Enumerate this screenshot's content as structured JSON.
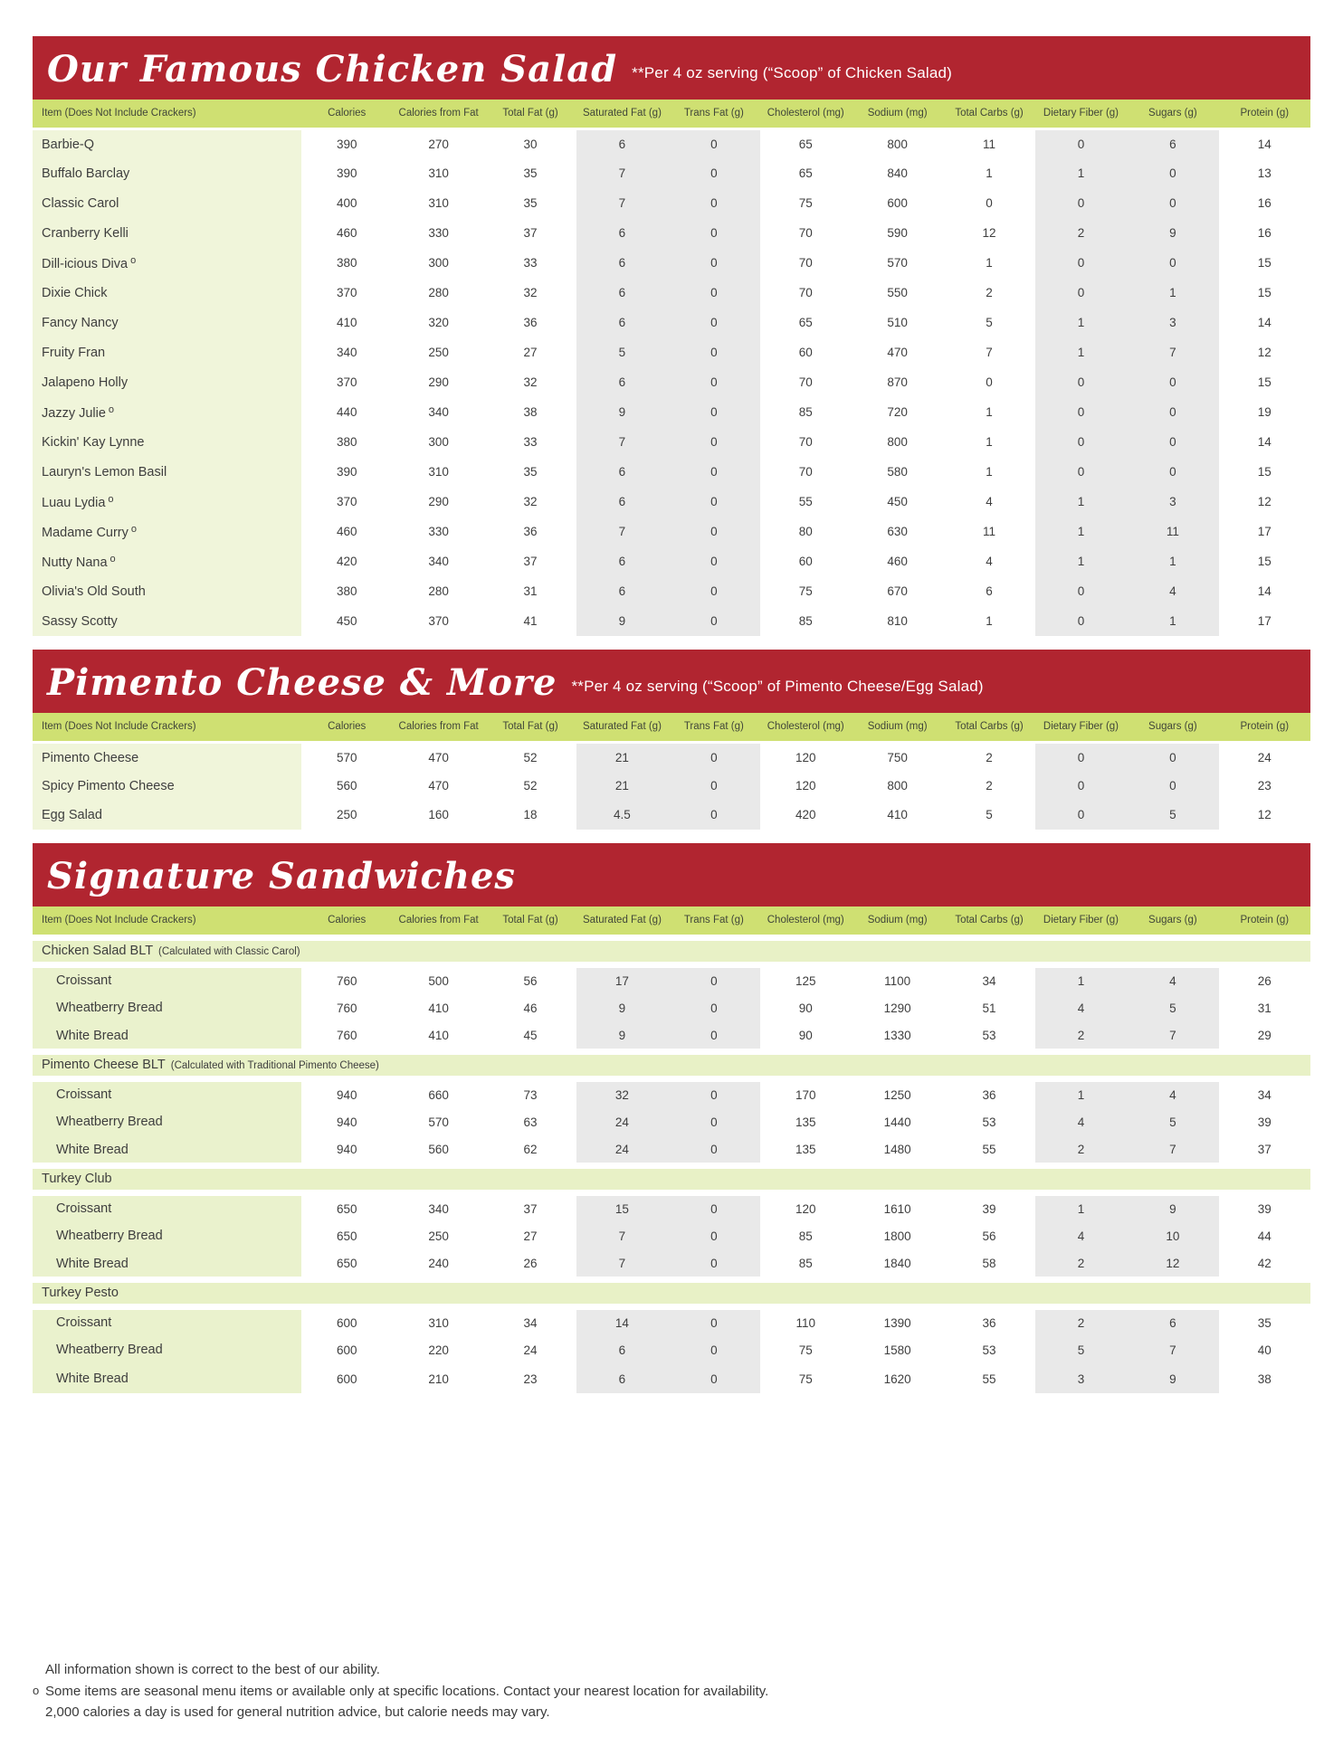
{
  "colors": {
    "band_red": "#b12530",
    "header_green": "#cfe072",
    "item_green": "#f0f5da",
    "group_green": "#e8f1c6",
    "stripe_gray": "#e9e9e9"
  },
  "columns": [
    "Item (Does Not Include Crackers)",
    "Calories",
    "Calories from Fat",
    "Total Fat (g)",
    "Saturated Fat (g)",
    "Trans Fat (g)",
    "Cholesterol (mg)",
    "Sodium (mg)",
    "Total Carbs (g)",
    "Dietary Fiber (g)",
    "Sugars (g)",
    "Protein (g)"
  ],
  "seasonal_marker": "o",
  "sections": [
    {
      "title": "Our Famous Chicken Salad",
      "subtitle": "**Per 4 oz serving (“Scoop” of Chicken Salad)",
      "rows": [
        {
          "name": "Barbie-Q",
          "seasonal": false,
          "values": [
            "390",
            "270",
            "30",
            "6",
            "0",
            "65",
            "800",
            "11",
            "0",
            "6",
            "14"
          ]
        },
        {
          "name": "Buffalo Barclay",
          "seasonal": false,
          "values": [
            "390",
            "310",
            "35",
            "7",
            "0",
            "65",
            "840",
            "1",
            "1",
            "0",
            "13"
          ]
        },
        {
          "name": "Classic Carol",
          "seasonal": false,
          "values": [
            "400",
            "310",
            "35",
            "7",
            "0",
            "75",
            "600",
            "0",
            "0",
            "0",
            "16"
          ]
        },
        {
          "name": "Cranberry Kelli",
          "seasonal": false,
          "values": [
            "460",
            "330",
            "37",
            "6",
            "0",
            "70",
            "590",
            "12",
            "2",
            "9",
            "16"
          ]
        },
        {
          "name": "Dill-icious Diva",
          "seasonal": true,
          "values": [
            "380",
            "300",
            "33",
            "6",
            "0",
            "70",
            "570",
            "1",
            "0",
            "0",
            "15"
          ]
        },
        {
          "name": "Dixie Chick",
          "seasonal": false,
          "values": [
            "370",
            "280",
            "32",
            "6",
            "0",
            "70",
            "550",
            "2",
            "0",
            "1",
            "15"
          ]
        },
        {
          "name": "Fancy Nancy",
          "seasonal": false,
          "values": [
            "410",
            "320",
            "36",
            "6",
            "0",
            "65",
            "510",
            "5",
            "1",
            "3",
            "14"
          ]
        },
        {
          "name": "Fruity Fran",
          "seasonal": false,
          "values": [
            "340",
            "250",
            "27",
            "5",
            "0",
            "60",
            "470",
            "7",
            "1",
            "7",
            "12"
          ]
        },
        {
          "name": "Jalapeno Holly",
          "seasonal": false,
          "values": [
            "370",
            "290",
            "32",
            "6",
            "0",
            "70",
            "870",
            "0",
            "0",
            "0",
            "15"
          ]
        },
        {
          "name": "Jazzy Julie",
          "seasonal": true,
          "values": [
            "440",
            "340",
            "38",
            "9",
            "0",
            "85",
            "720",
            "1",
            "0",
            "0",
            "19"
          ]
        },
        {
          "name": "Kickin' Kay Lynne",
          "seasonal": false,
          "values": [
            "380",
            "300",
            "33",
            "7",
            "0",
            "70",
            "800",
            "1",
            "0",
            "0",
            "14"
          ]
        },
        {
          "name": "Lauryn's Lemon Basil",
          "seasonal": false,
          "values": [
            "390",
            "310",
            "35",
            "6",
            "0",
            "70",
            "580",
            "1",
            "0",
            "0",
            "15"
          ]
        },
        {
          "name": "Luau Lydia",
          "seasonal": true,
          "values": [
            "370",
            "290",
            "32",
            "6",
            "0",
            "55",
            "450",
            "4",
            "1",
            "3",
            "12"
          ]
        },
        {
          "name": "Madame Curry",
          "seasonal": true,
          "values": [
            "460",
            "330",
            "36",
            "7",
            "0",
            "80",
            "630",
            "11",
            "1",
            "11",
            "17"
          ]
        },
        {
          "name": "Nutty Nana",
          "seasonal": true,
          "values": [
            "420",
            "340",
            "37",
            "6",
            "0",
            "60",
            "460",
            "4",
            "1",
            "1",
            "15"
          ]
        },
        {
          "name": "Olivia's Old South",
          "seasonal": false,
          "values": [
            "380",
            "280",
            "31",
            "6",
            "0",
            "75",
            "670",
            "6",
            "0",
            "4",
            "14"
          ]
        },
        {
          "name": "Sassy Scotty",
          "seasonal": false,
          "values": [
            "450",
            "370",
            "41",
            "9",
            "0",
            "85",
            "810",
            "1",
            "0",
            "1",
            "17"
          ]
        }
      ]
    },
    {
      "title": "Pimento Cheese & More",
      "subtitle": "**Per 4 oz serving (“Scoop” of Pimento Cheese/Egg Salad)",
      "rows": [
        {
          "name": "Pimento Cheese",
          "seasonal": false,
          "values": [
            "570",
            "470",
            "52",
            "21",
            "0",
            "120",
            "750",
            "2",
            "0",
            "0",
            "24"
          ]
        },
        {
          "name": "Spicy Pimento Cheese",
          "seasonal": false,
          "values": [
            "560",
            "470",
            "52",
            "21",
            "0",
            "120",
            "800",
            "2",
            "0",
            "0",
            "23"
          ]
        },
        {
          "name": "Egg Salad",
          "seasonal": false,
          "values": [
            "250",
            "160",
            "18",
            "4.5",
            "0",
            "420",
            "410",
            "5",
            "0",
            "5",
            "12"
          ]
        }
      ]
    },
    {
      "title": "Signature Sandwiches",
      "subtitle": "",
      "groups": [
        {
          "name": "Chicken Salad BLT",
          "note": "(Calculated with Classic Carol)",
          "rows": [
            {
              "name": "Croissant",
              "values": [
                "760",
                "500",
                "56",
                "17",
                "0",
                "125",
                "1100",
                "34",
                "1",
                "4",
                "26"
              ]
            },
            {
              "name": "Wheatberry Bread",
              "values": [
                "760",
                "410",
                "46",
                "9",
                "0",
                "90",
                "1290",
                "51",
                "4",
                "5",
                "31"
              ]
            },
            {
              "name": "White Bread",
              "values": [
                "760",
                "410",
                "45",
                "9",
                "0",
                "90",
                "1330",
                "53",
                "2",
                "7",
                "29"
              ]
            }
          ]
        },
        {
          "name": "Pimento Cheese BLT",
          "note": "(Calculated with Traditional Pimento Cheese)",
          "rows": [
            {
              "name": "Croissant",
              "values": [
                "940",
                "660",
                "73",
                "32",
                "0",
                "170",
                "1250",
                "36",
                "1",
                "4",
                "34"
              ]
            },
            {
              "name": "Wheatberry Bread",
              "values": [
                "940",
                "570",
                "63",
                "24",
                "0",
                "135",
                "1440",
                "53",
                "4",
                "5",
                "39"
              ]
            },
            {
              "name": "White Bread",
              "values": [
                "940",
                "560",
                "62",
                "24",
                "0",
                "135",
                "1480",
                "55",
                "2",
                "7",
                "37"
              ]
            }
          ]
        },
        {
          "name": "Turkey Club",
          "note": "",
          "rows": [
            {
              "name": "Croissant",
              "values": [
                "650",
                "340",
                "37",
                "15",
                "0",
                "120",
                "1610",
                "39",
                "1",
                "9",
                "39"
              ]
            },
            {
              "name": "Wheatberry Bread",
              "values": [
                "650",
                "250",
                "27",
                "7",
                "0",
                "85",
                "1800",
                "56",
                "4",
                "10",
                "44"
              ]
            },
            {
              "name": "White Bread",
              "values": [
                "650",
                "240",
                "26",
                "7",
                "0",
                "85",
                "1840",
                "58",
                "2",
                "12",
                "42"
              ]
            }
          ]
        },
        {
          "name": "Turkey Pesto",
          "note": "",
          "rows": [
            {
              "name": "Croissant",
              "values": [
                "600",
                "310",
                "34",
                "14",
                "0",
                "110",
                "1390",
                "36",
                "2",
                "6",
                "35"
              ]
            },
            {
              "name": "Wheatberry Bread",
              "values": [
                "600",
                "220",
                "24",
                "6",
                "0",
                "75",
                "1580",
                "53",
                "5",
                "7",
                "40"
              ]
            },
            {
              "name": "White Bread",
              "values": [
                "600",
                "210",
                "23",
                "6",
                "0",
                "75",
                "1620",
                "55",
                "3",
                "9",
                "38"
              ]
            }
          ]
        }
      ]
    }
  ],
  "footer": {
    "line1": "All information shown is correct to the best of our ability.",
    "line2_marker": "o",
    "line2": "Some items are seasonal menu items or available only at specific locations. Contact your nearest location for availability.",
    "line3": "2,000 calories a day is used for general nutrition advice, but calorie needs may vary."
  }
}
